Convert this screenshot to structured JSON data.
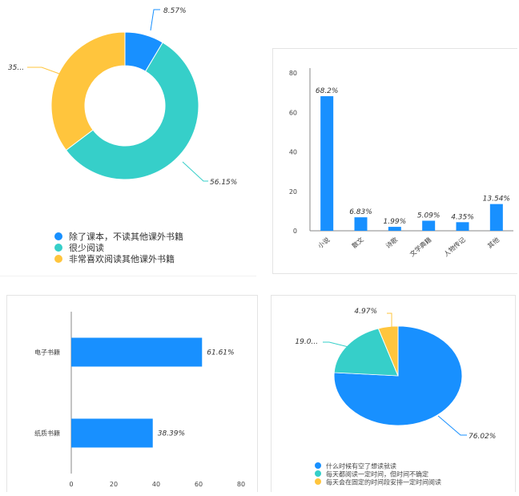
{
  "chart_data": [
    {
      "type": "pie",
      "variant": "donut",
      "labels": [
        "除了课本，不读其他课外书籍",
        "很少阅读",
        "非常喜欢阅读其他课外书籍"
      ],
      "values": [
        8.57,
        56.15,
        35.28
      ],
      "data_labels": [
        "8.57%",
        "56.15%",
        "35..."
      ],
      "colors": [
        "#1890ff",
        "#36cfc9",
        "#ffc53d"
      ],
      "legend_position": "bottom"
    },
    {
      "type": "bar",
      "orientation": "vertical",
      "categories": [
        "小说",
        "散文",
        "诗歌",
        "文学典籍",
        "人物传记",
        "其他"
      ],
      "values": [
        68.2,
        6.83,
        1.99,
        5.09,
        4.35,
        13.54
      ],
      "data_labels": [
        "68.2%",
        "6.83%",
        "1.99%",
        "5.09%",
        "4.35%",
        "13.54%"
      ],
      "y_ticks": [
        "0",
        "20",
        "40",
        "60",
        "80"
      ],
      "ylim": [
        0,
        80
      ],
      "color": "#1890ff",
      "grid": false
    },
    {
      "type": "bar",
      "orientation": "horizontal",
      "categories": [
        "电子书籍",
        "纸质书籍"
      ],
      "values": [
        61.61,
        38.39
      ],
      "data_labels": [
        "61.61%",
        "38.39%"
      ],
      "x_ticks": [
        "0",
        "20",
        "40",
        "60",
        "80"
      ],
      "xlim": [
        0,
        80
      ],
      "color": "#1890ff",
      "grid": false
    },
    {
      "type": "pie",
      "labels": [
        "什么时候有空了想读就读",
        "每天都阅读一定时间，但时间不确定",
        "每天会在固定的时间段安排一定时间阅读"
      ],
      "values": [
        76.02,
        19.01,
        4.97
      ],
      "data_labels": [
        "76.02%",
        "19.0...",
        "4.97%"
      ],
      "colors": [
        "#1890ff",
        "#36cfc9",
        "#ffc53d"
      ],
      "legend_position": "bottom"
    }
  ]
}
